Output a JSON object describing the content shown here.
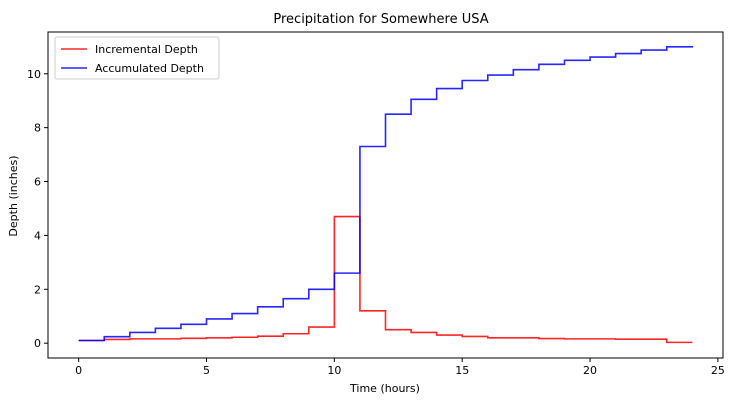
{
  "chart_data": {
    "type": "line",
    "title": "Precipitation for Somewhere USA",
    "xlabel": "Time (hours)",
    "ylabel": "Depth (inches)",
    "xlim": [
      -1.2,
      25.2
    ],
    "ylim": [
      -0.55,
      11.55
    ],
    "x_ticks": [
      0,
      5,
      10,
      15,
      20,
      25
    ],
    "y_ticks": [
      0,
      2,
      4,
      6,
      8,
      10
    ],
    "grid": false,
    "legend_position": "top-left",
    "step": "post",
    "x": [
      0,
      1,
      2,
      3,
      4,
      5,
      6,
      7,
      8,
      9,
      10,
      11,
      12,
      13,
      14,
      15,
      16,
      17,
      18,
      19,
      20,
      21,
      22,
      23,
      24
    ],
    "series": [
      {
        "name": "Incremental Depth",
        "color": "#ff0000",
        "values": [
          0.1,
          0.14,
          0.16,
          0.16,
          0.18,
          0.2,
          0.22,
          0.26,
          0.35,
          0.6,
          4.7,
          1.2,
          0.5,
          0.4,
          0.3,
          0.25,
          0.2,
          0.2,
          0.17,
          0.16,
          0.16,
          0.15,
          0.15,
          0.03,
          0.03
        ]
      },
      {
        "name": "Accumulated Depth",
        "color": "#0000ff",
        "values": [
          0.1,
          0.24,
          0.4,
          0.55,
          0.7,
          0.9,
          1.1,
          1.35,
          1.65,
          2.0,
          2.6,
          7.3,
          8.5,
          9.05,
          9.45,
          9.75,
          9.95,
          10.15,
          10.35,
          10.5,
          10.62,
          10.75,
          10.88,
          11.0,
          11.03
        ]
      }
    ]
  }
}
